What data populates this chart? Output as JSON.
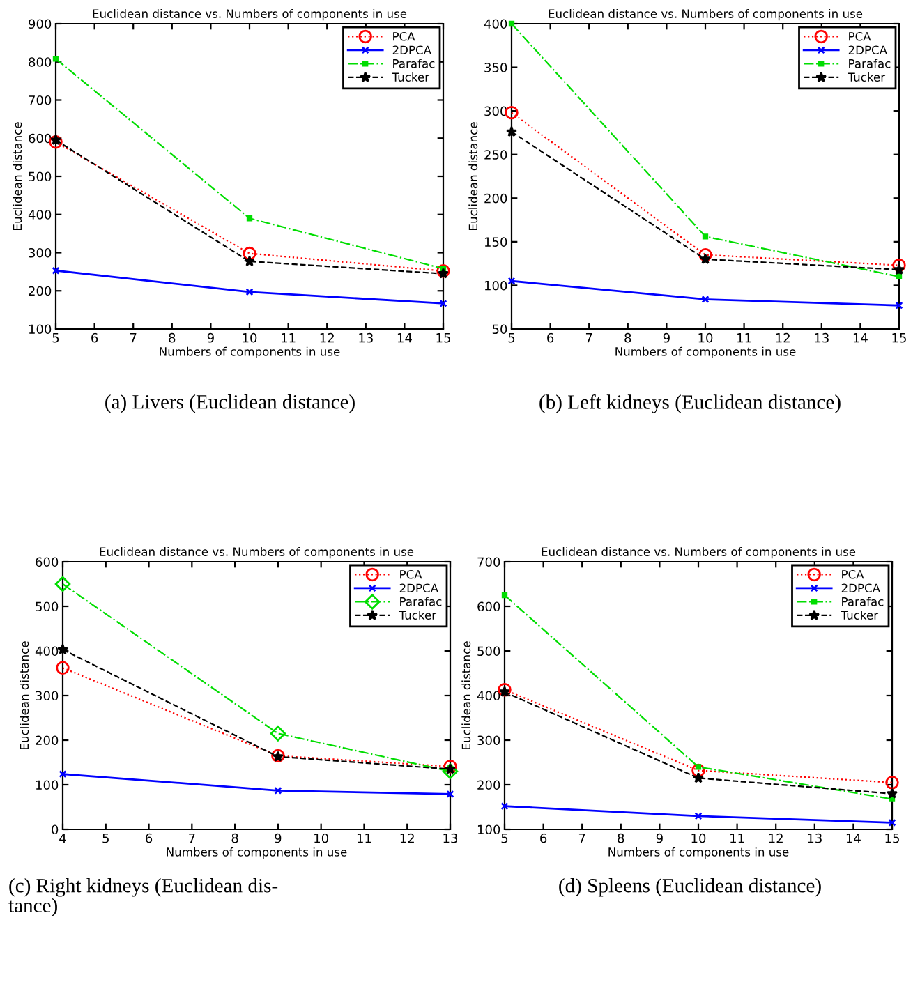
{
  "chart_data": [
    {
      "type": "line",
      "title": "Euclidean distance vs. Numbers of components in use",
      "xlabel": "Numbers of components in use",
      "ylabel": "Euclidean distance",
      "x": [
        5,
        10,
        15
      ],
      "xlim": [
        5,
        15
      ],
      "xticks": [
        5,
        6,
        7,
        8,
        9,
        10,
        11,
        12,
        13,
        14,
        15
      ],
      "ylim": [
        100,
        900
      ],
      "yticks": [
        100,
        200,
        300,
        400,
        500,
        600,
        700,
        800,
        900
      ],
      "grid": false,
      "legend": "top right",
      "annotations": [
        "(a) Livers (Euclidean distance)"
      ],
      "series": [
        {
          "name": "PCA",
          "color": "#ff0000",
          "values": [
            590,
            298,
            252
          ],
          "marker": "circle",
          "line_style": "dotted"
        },
        {
          "name": "2DPCA",
          "color": "#0000ff",
          "values": [
            253,
            197,
            167
          ],
          "marker": "cross",
          "line_style": "solid"
        },
        {
          "name": "Parafac",
          "color": "#00dd00",
          "values": [
            808,
            390,
            258
          ],
          "marker": "square",
          "line_style": "dashdot"
        },
        {
          "name": "Tucker",
          "color": "#000000",
          "values": [
            595,
            277,
            245
          ],
          "marker": "star",
          "line_style": "dashed"
        }
      ]
    },
    {
      "type": "line",
      "title": "Euclidean distance vs. Numbers of components in use",
      "xlabel": "Numbers of components in use",
      "ylabel": "Euclidean distance",
      "x": [
        5,
        10,
        15
      ],
      "xlim": [
        5,
        15
      ],
      "xticks": [
        5,
        6,
        7,
        8,
        9,
        10,
        11,
        12,
        13,
        14,
        15
      ],
      "ylim": [
        50,
        400
      ],
      "yticks": [
        50,
        100,
        150,
        200,
        250,
        300,
        350,
        400
      ],
      "grid": false,
      "legend": "top right",
      "annotations": [
        "(b) Left kidneys (Euclidean distance)"
      ],
      "series": [
        {
          "name": "PCA",
          "color": "#ff0000",
          "values": [
            298,
            135,
            123
          ],
          "marker": "circle",
          "line_style": "dotted"
        },
        {
          "name": "2DPCA",
          "color": "#0000ff",
          "values": [
            105,
            84,
            77
          ],
          "marker": "cross",
          "line_style": "solid"
        },
        {
          "name": "Parafac",
          "color": "#00dd00",
          "values": [
            400,
            156,
            110
          ],
          "marker": "square",
          "line_style": "dashdot"
        },
        {
          "name": "Tucker",
          "color": "#000000",
          "values": [
            276,
            130,
            118
          ],
          "marker": "star",
          "line_style": "dashed"
        }
      ]
    },
    {
      "type": "line",
      "title": "Euclidean distance vs. Numbers of components in use",
      "xlabel": "Numbers of components in use",
      "ylabel": "Euclidean distance",
      "x": [
        4,
        9,
        13
      ],
      "xlim": [
        4,
        13
      ],
      "xticks": [
        4,
        5,
        6,
        7,
        8,
        9,
        10,
        11,
        12,
        13
      ],
      "ylim": [
        0,
        600
      ],
      "yticks": [
        0,
        100,
        200,
        300,
        400,
        500,
        600
      ],
      "grid": false,
      "legend": "top right",
      "annotations": [
        "(c) Right kidneys (Euclidean dis-\ntance)"
      ],
      "series": [
        {
          "name": "PCA",
          "color": "#ff0000",
          "values": [
            362,
            165,
            141
          ],
          "marker": "circle",
          "line_style": "dotted"
        },
        {
          "name": "2DPCA",
          "color": "#0000ff",
          "values": [
            124,
            87,
            79
          ],
          "marker": "cross",
          "line_style": "solid"
        },
        {
          "name": "Parafac",
          "color": "#00dd00",
          "values": [
            550,
            215,
            130
          ],
          "marker": "diamond",
          "line_style": "dashdot"
        },
        {
          "name": "Tucker",
          "color": "#000000",
          "values": [
            403,
            163,
            135
          ],
          "marker": "star",
          "line_style": "dashed"
        }
      ]
    },
    {
      "type": "line",
      "title": "Euclidean distance vs. Numbers of components in use",
      "xlabel": "Numbers of components in use",
      "ylabel": "Euclidean distance",
      "x": [
        5,
        10,
        15
      ],
      "xlim": [
        5,
        15
      ],
      "xticks": [
        5,
        6,
        7,
        8,
        9,
        10,
        11,
        12,
        13,
        14,
        15
      ],
      "ylim": [
        100,
        700
      ],
      "yticks": [
        100,
        200,
        300,
        400,
        500,
        600,
        700
      ],
      "grid": false,
      "legend": "top right",
      "annotations": [
        "(d) Spleens (Euclidean distance)"
      ],
      "series": [
        {
          "name": "PCA",
          "color": "#ff0000",
          "values": [
            413,
            232,
            205
          ],
          "marker": "circle",
          "line_style": "dotted"
        },
        {
          "name": "2DPCA",
          "color": "#0000ff",
          "values": [
            152,
            130,
            115
          ],
          "marker": "cross",
          "line_style": "solid"
        },
        {
          "name": "Parafac",
          "color": "#00dd00",
          "values": [
            625,
            240,
            168
          ],
          "marker": "square",
          "line_style": "dashdot"
        },
        {
          "name": "Tucker",
          "color": "#000000",
          "values": [
            408,
            215,
            180
          ],
          "marker": "star",
          "line_style": "dashed"
        }
      ]
    }
  ]
}
